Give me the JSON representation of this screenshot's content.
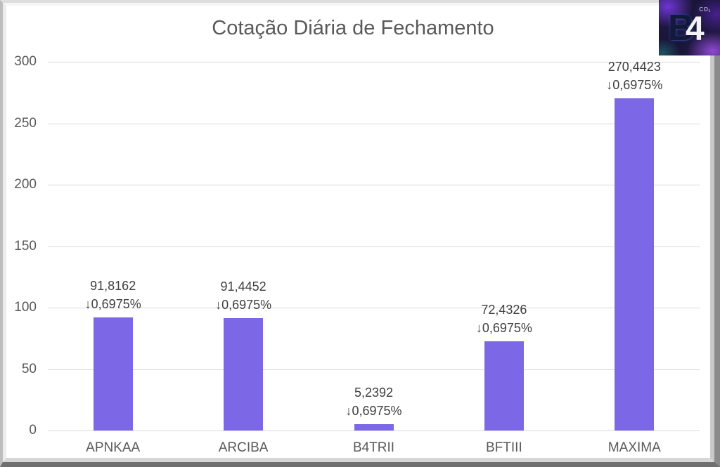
{
  "chart_data": {
    "type": "bar",
    "title": "Cotação Diária de Fechamento",
    "categories": [
      "APNKAA",
      "ARCIBA",
      "B4TRII",
      "BFTIII",
      "MAXIMA"
    ],
    "values": [
      91.8162,
      91.4452,
      5.2392,
      72.4326,
      270.4423
    ],
    "value_labels": [
      "91,8162",
      "91,4452",
      "5,2392",
      "72,4326",
      "270,4423"
    ],
    "change_labels": [
      "↓0,6975%",
      "↓0,6975%",
      "↓0,6975%",
      "↓0,6975%",
      "↓0,6975%"
    ],
    "xlabel": "",
    "ylabel": "",
    "ylim": [
      0,
      300
    ],
    "yticks": [
      0,
      50,
      100,
      150,
      200,
      250,
      300
    ],
    "grid": true,
    "legend": false,
    "bar_color": "#7c68e6"
  },
  "logo": {
    "letter_b": "B",
    "letter_4": "4",
    "co2_label": "CO₂"
  },
  "colors": {
    "bar": "#7c68e6",
    "gridline": "#d9d9d9",
    "axis_text": "#595959",
    "value_label_text": "#404040",
    "title_text": "#595959"
  }
}
